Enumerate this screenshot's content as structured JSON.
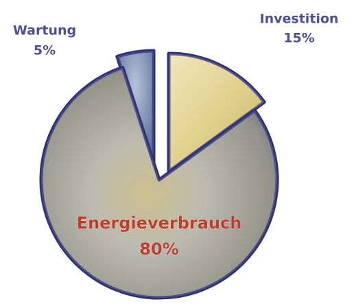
{
  "chart_data": {
    "type": "pie",
    "categories": [
      "Wartung",
      "Investition",
      "Energieverbrauch"
    ],
    "values": [
      5,
      15,
      80
    ],
    "value_labels": [
      "5%",
      "15%",
      "80%"
    ],
    "colors": [
      "#7f93b8",
      "#e6d9a0",
      "#a8a79c"
    ],
    "edge_color": "#2c3079"
  }
}
